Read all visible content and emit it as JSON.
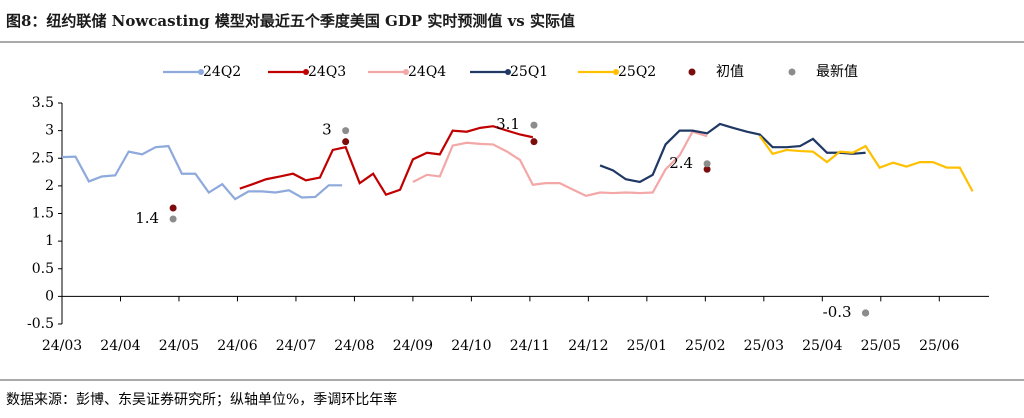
{
  "chart_data": {
    "type": "line",
    "title": "图8：纽约联储 Nowcasting 模型对最近五个季度美国 GDP 实时预测值 vs 实际值",
    "source": "数据来源：彭博、东吴证券研究所；纵轴单位%，季调环比年率",
    "xlim": [
      0,
      15.85
    ],
    "xticks": [
      {
        "value": 0,
        "label": "24/03"
      },
      {
        "value": 1,
        "label": "24/04"
      },
      {
        "value": 2,
        "label": "24/05"
      },
      {
        "value": 3,
        "label": "24/06"
      },
      {
        "value": 4,
        "label": "24/07"
      },
      {
        "value": 5,
        "label": "24/08"
      },
      {
        "value": 6,
        "label": "24/09"
      },
      {
        "value": 7,
        "label": "24/10"
      },
      {
        "value": 8,
        "label": "24/11"
      },
      {
        "value": 9,
        "label": "24/12"
      },
      {
        "value": 10,
        "label": "25/01"
      },
      {
        "value": 11,
        "label": "25/02"
      },
      {
        "value": 12,
        "label": "25/03"
      },
      {
        "value": 13,
        "label": "25/04"
      },
      {
        "value": 14,
        "label": "25/05"
      },
      {
        "value": 15,
        "label": "25/06"
      }
    ],
    "ylim": [
      -0.5,
      3.5
    ],
    "yticks": [
      -0.5,
      0,
      0.5,
      1,
      1.5,
      2,
      2.5,
      3,
      3.5
    ],
    "series": [
      {
        "name": "24Q2",
        "color": "#8EA9DB",
        "style": "line",
        "x": [
          0,
          0.23,
          0.46,
          0.68,
          0.91,
          1.14,
          1.37,
          1.6,
          1.82,
          2.05,
          2.28,
          2.51,
          2.74,
          2.96,
          3.19,
          3.42,
          3.65,
          3.88,
          4.1,
          4.33,
          4.56,
          4.79
        ],
        "values": [
          2.52,
          2.53,
          2.08,
          2.17,
          2.19,
          2.62,
          2.57,
          2.7,
          2.72,
          2.22,
          2.22,
          1.88,
          2.03,
          1.76,
          1.9,
          1.9,
          1.88,
          1.92,
          1.79,
          1.8,
          2.01,
          2.01
        ]
      },
      {
        "name": "24Q3",
        "color": "#C00000",
        "style": "line",
        "x": [
          3.04,
          3.26,
          3.49,
          3.73,
          3.95,
          4.17,
          4.41,
          4.63,
          4.85,
          5.09,
          5.32,
          5.54,
          5.78,
          6.0,
          6.24,
          6.46,
          6.68,
          6.92,
          7.15,
          7.37,
          7.61,
          7.83,
          8.05
        ],
        "values": [
          1.95,
          2.03,
          2.12,
          2.17,
          2.22,
          2.1,
          2.15,
          2.65,
          2.7,
          2.05,
          2.22,
          1.84,
          1.93,
          2.48,
          2.6,
          2.57,
          3.0,
          2.98,
          3.05,
          3.08,
          3.0,
          2.93,
          2.88
        ]
      },
      {
        "name": "24Q4",
        "color": "#F4A7A7",
        "style": "line",
        "x": [
          6.0,
          6.24,
          6.46,
          6.68,
          6.92,
          7.15,
          7.37,
          7.61,
          7.83,
          8.05,
          8.27,
          8.51,
          8.74,
          8.96,
          9.2,
          9.42,
          9.64,
          9.88,
          10.1,
          10.32,
          10.56,
          10.78,
          11.03
        ],
        "values": [
          2.07,
          2.2,
          2.17,
          2.73,
          2.78,
          2.76,
          2.75,
          2.62,
          2.47,
          2.02,
          2.05,
          2.05,
          1.93,
          1.82,
          1.88,
          1.87,
          1.88,
          1.87,
          1.88,
          2.3,
          2.55,
          2.98,
          2.9
        ]
      },
      {
        "name": "25Q1",
        "color": "#1F3864",
        "style": "line",
        "x": [
          9.2,
          9.42,
          9.64,
          9.88,
          10.1,
          10.32,
          10.56,
          10.78,
          11.03,
          11.25,
          11.47,
          11.71,
          11.93,
          12.15,
          12.39,
          12.62,
          12.84,
          13.08,
          13.3,
          13.52,
          13.74
        ],
        "values": [
          2.37,
          2.28,
          2.12,
          2.07,
          2.2,
          2.75,
          3.0,
          3.0,
          2.95,
          3.12,
          3.05,
          2.98,
          2.93,
          2.7,
          2.7,
          2.72,
          2.85,
          2.6,
          2.6,
          2.58,
          2.6
        ]
      },
      {
        "name": "25Q2",
        "color": "#FFC000",
        "style": "line",
        "x": [
          11.93,
          12.15,
          12.39,
          12.62,
          12.84,
          13.08,
          13.3,
          13.52,
          13.74,
          13.98,
          14.21,
          14.44,
          14.67,
          14.89,
          15.13,
          15.35,
          15.57
        ],
        "values": [
          2.9,
          2.58,
          2.65,
          2.63,
          2.62,
          2.43,
          2.62,
          2.6,
          2.72,
          2.33,
          2.42,
          2.35,
          2.43,
          2.43,
          2.33,
          2.33,
          1.9
        ]
      },
      {
        "name": "初值",
        "color": "#7B0C0C",
        "style": "dot",
        "x": [
          1.9,
          4.85,
          8.07,
          11.03,
          13.74
        ],
        "values": [
          1.6,
          2.8,
          2.8,
          2.3,
          -0.3
        ]
      },
      {
        "name": "最新值",
        "color": "#8C8C8C",
        "style": "dot",
        "labeled": true,
        "x": [
          1.9,
          4.85,
          8.07,
          11.03,
          13.74
        ],
        "values": [
          1.4,
          3,
          3.1,
          2.4,
          -0.3
        ]
      }
    ]
  }
}
